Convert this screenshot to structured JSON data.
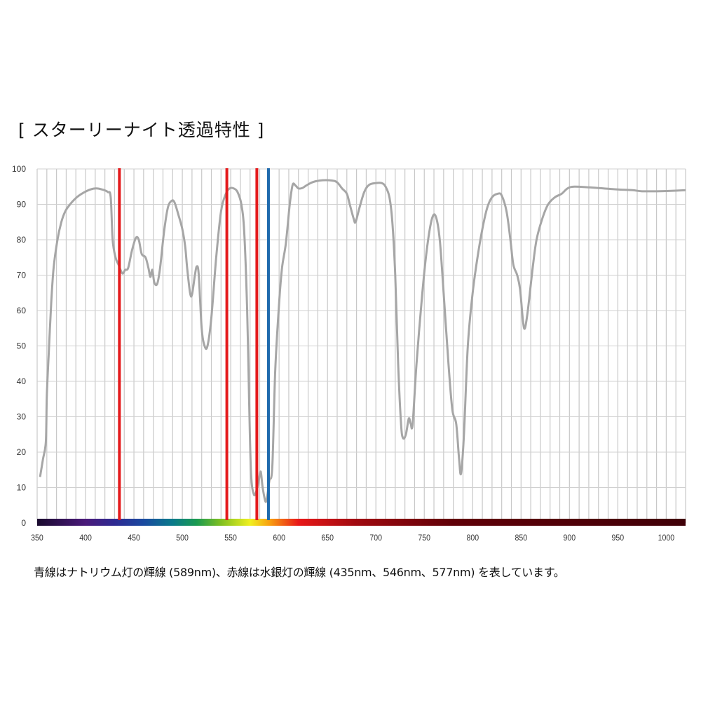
{
  "title": "[ スターリーナイト透過特性 ]",
  "caption": "青線はナトリウム灯の輝線 (589nm)、赤線は水銀灯の輝線 (435nm、546nm、577nm) を表しています。",
  "chart_data": {
    "type": "line",
    "title": "[ スターリーナイト透過特性 ]",
    "xlabel": "",
    "ylabel": "",
    "xlim": [
      350,
      1020
    ],
    "ylim": [
      0,
      100
    ],
    "x_ticks": [
      350,
      400,
      450,
      500,
      550,
      600,
      650,
      700,
      750,
      800,
      850,
      900,
      950,
      1000
    ],
    "y_ticks": [
      0,
      10,
      20,
      30,
      40,
      50,
      60,
      70,
      80,
      90,
      100
    ],
    "grid": {
      "x_minor_step": 10,
      "y_step": 10,
      "on": true
    },
    "series": [
      {
        "color": "#a6a6a6",
        "points": [
          [
            353,
            13
          ],
          [
            356,
            18
          ],
          [
            359,
            23
          ],
          [
            360,
            36
          ],
          [
            362,
            48
          ],
          [
            364.5,
            62
          ],
          [
            367,
            72
          ],
          [
            371,
            80
          ],
          [
            375,
            85
          ],
          [
            379,
            88
          ],
          [
            384,
            90
          ],
          [
            391,
            92
          ],
          [
            398,
            93.3
          ],
          [
            405,
            94.2
          ],
          [
            411,
            94.5
          ],
          [
            417,
            94.2
          ],
          [
            423,
            93.5
          ],
          [
            426,
            92
          ],
          [
            428,
            80
          ],
          [
            431,
            75
          ],
          [
            434,
            73
          ],
          [
            438,
            70.5
          ],
          [
            441,
            71.5
          ],
          [
            444,
            72
          ],
          [
            448,
            77
          ],
          [
            452,
            80.5
          ],
          [
            455,
            80
          ],
          [
            458,
            76
          ],
          [
            462,
            75
          ],
          [
            465,
            72
          ],
          [
            467,
            69.5
          ],
          [
            469,
            71.5
          ],
          [
            471,
            68
          ],
          [
            474,
            67.5
          ],
          [
            477,
            72
          ],
          [
            481,
            82
          ],
          [
            485,
            89
          ],
          [
            489,
            91
          ],
          [
            492,
            90.5
          ],
          [
            496,
            87
          ],
          [
            500,
            83
          ],
          [
            503,
            78
          ],
          [
            505,
            72
          ],
          [
            508,
            65
          ],
          [
            510,
            64.5
          ],
          [
            513,
            70
          ],
          [
            515,
            72.5
          ],
          [
            517,
            70
          ],
          [
            520,
            55
          ],
          [
            523,
            50
          ],
          [
            526,
            50
          ],
          [
            530,
            58
          ],
          [
            535,
            75
          ],
          [
            540,
            88
          ],
          [
            545,
            93
          ],
          [
            549,
            94.5
          ],
          [
            553,
            94.5
          ],
          [
            557,
            93.5
          ],
          [
            561,
            90
          ],
          [
            564,
            82
          ],
          [
            567,
            60
          ],
          [
            569,
            35
          ],
          [
            571,
            14
          ],
          [
            574,
            8
          ],
          [
            577,
            9.5
          ],
          [
            579,
            12
          ],
          [
            581,
            14.5
          ],
          [
            583,
            10
          ],
          [
            586,
            6
          ],
          [
            588,
            8
          ],
          [
            590,
            12
          ],
          [
            593,
            16
          ],
          [
            596,
            43
          ],
          [
            600,
            62
          ],
          [
            603,
            72
          ],
          [
            607,
            79
          ],
          [
            611,
            90
          ],
          [
            614,
            95.5
          ],
          [
            617,
            95.3
          ],
          [
            620,
            94.5
          ],
          [
            624,
            94.6
          ],
          [
            628,
            95.3
          ],
          [
            635,
            96.3
          ],
          [
            645,
            96.8
          ],
          [
            655,
            96.7
          ],
          [
            660,
            96.2
          ],
          [
            665,
            94.5
          ],
          [
            670,
            93
          ],
          [
            673,
            90
          ],
          [
            677,
            86
          ],
          [
            679,
            85
          ],
          [
            683,
            89
          ],
          [
            688,
            93.5
          ],
          [
            693,
            95.5
          ],
          [
            700,
            96
          ],
          [
            706,
            96
          ],
          [
            710,
            95
          ],
          [
            714,
            92
          ],
          [
            717,
            85
          ],
          [
            720,
            70
          ],
          [
            723,
            45
          ],
          [
            726,
            28
          ],
          [
            728,
            24
          ],
          [
            731,
            25
          ],
          [
            734,
            29.5
          ],
          [
            736,
            28
          ],
          [
            738,
            28
          ],
          [
            742,
            45
          ],
          [
            748,
            65
          ],
          [
            753,
            78
          ],
          [
            758,
            86
          ],
          [
            762,
            86.5
          ],
          [
            766,
            80
          ],
          [
            770,
            65
          ],
          [
            775,
            45
          ],
          [
            779,
            32
          ],
          [
            783,
            28
          ],
          [
            786,
            18
          ],
          [
            788,
            14
          ],
          [
            791,
            25
          ],
          [
            795,
            50
          ],
          [
            800,
            65
          ],
          [
            805,
            75
          ],
          [
            810,
            83
          ],
          [
            815,
            89
          ],
          [
            820,
            92
          ],
          [
            826,
            93
          ],
          [
            830,
            92.5
          ],
          [
            835,
            88
          ],
          [
            839,
            80
          ],
          [
            842,
            73
          ],
          [
            846,
            70
          ],
          [
            849,
            66
          ],
          [
            852,
            57
          ],
          [
            854,
            55
          ],
          [
            857,
            60
          ],
          [
            862,
            72
          ],
          [
            866,
            80
          ],
          [
            872,
            86
          ],
          [
            878,
            90
          ],
          [
            885,
            92
          ],
          [
            892,
            93
          ],
          [
            898,
            94.5
          ],
          [
            905,
            95
          ],
          [
            920,
            94.8
          ],
          [
            935,
            94.5
          ],
          [
            950,
            94.2
          ],
          [
            965,
            94
          ],
          [
            975,
            93.7
          ],
          [
            990,
            93.7
          ],
          [
            1005,
            93.8
          ],
          [
            1020,
            94
          ]
        ]
      }
    ],
    "reference_lines": [
      {
        "x": 435,
        "color": "#e41a1c",
        "label": "水銀灯"
      },
      {
        "x": 546,
        "color": "#e41a1c",
        "label": "水銀灯"
      },
      {
        "x": 577,
        "color": "#e41a1c",
        "label": "水銀灯"
      },
      {
        "x": 589,
        "color": "#1f6aad",
        "label": "ナトリウム灯"
      }
    ],
    "spectrum_bar": [
      [
        350,
        "#1a0a2e"
      ],
      [
        400,
        "#4a1a7a"
      ],
      [
        430,
        "#2e2a92"
      ],
      [
        460,
        "#1a4aa0"
      ],
      [
        490,
        "#0a7a8a"
      ],
      [
        515,
        "#1a9a50"
      ],
      [
        540,
        "#80c020"
      ],
      [
        570,
        "#f0f020"
      ],
      [
        590,
        "#f8a010"
      ],
      [
        620,
        "#e81818"
      ],
      [
        680,
        "#a00a10"
      ],
      [
        780,
        "#600008"
      ],
      [
        1020,
        "#400008"
      ]
    ]
  }
}
